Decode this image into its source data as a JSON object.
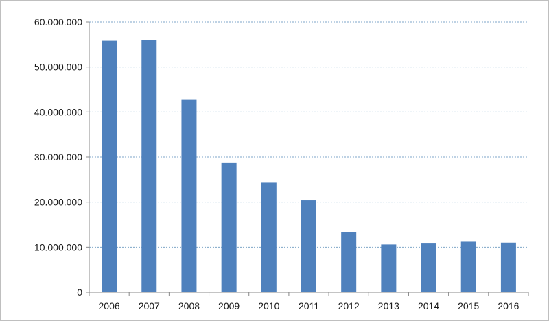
{
  "chart_data": {
    "type": "bar",
    "title": "",
    "xlabel": "",
    "ylabel": "",
    "categories": [
      "2006",
      "2007",
      "2008",
      "2009",
      "2010",
      "2011",
      "2012",
      "2013",
      "2014",
      "2015",
      "2016"
    ],
    "values": [
      55800000,
      56000000,
      42700000,
      28800000,
      24300000,
      20400000,
      13400000,
      10600000,
      10800000,
      11200000,
      11000000
    ],
    "ylim": [
      0,
      60000000
    ],
    "yticks": [
      0,
      10000000,
      20000000,
      30000000,
      40000000,
      50000000,
      60000000
    ],
    "ytick_labels": [
      "0",
      "10.000.000",
      "20.000.000",
      "30.000.000",
      "40.000.000",
      "50.000.000",
      "60.000.000"
    ],
    "grid": true,
    "legend": "none",
    "bar_color": "#4f81bd",
    "grid_color": "#7ea6c8"
  }
}
